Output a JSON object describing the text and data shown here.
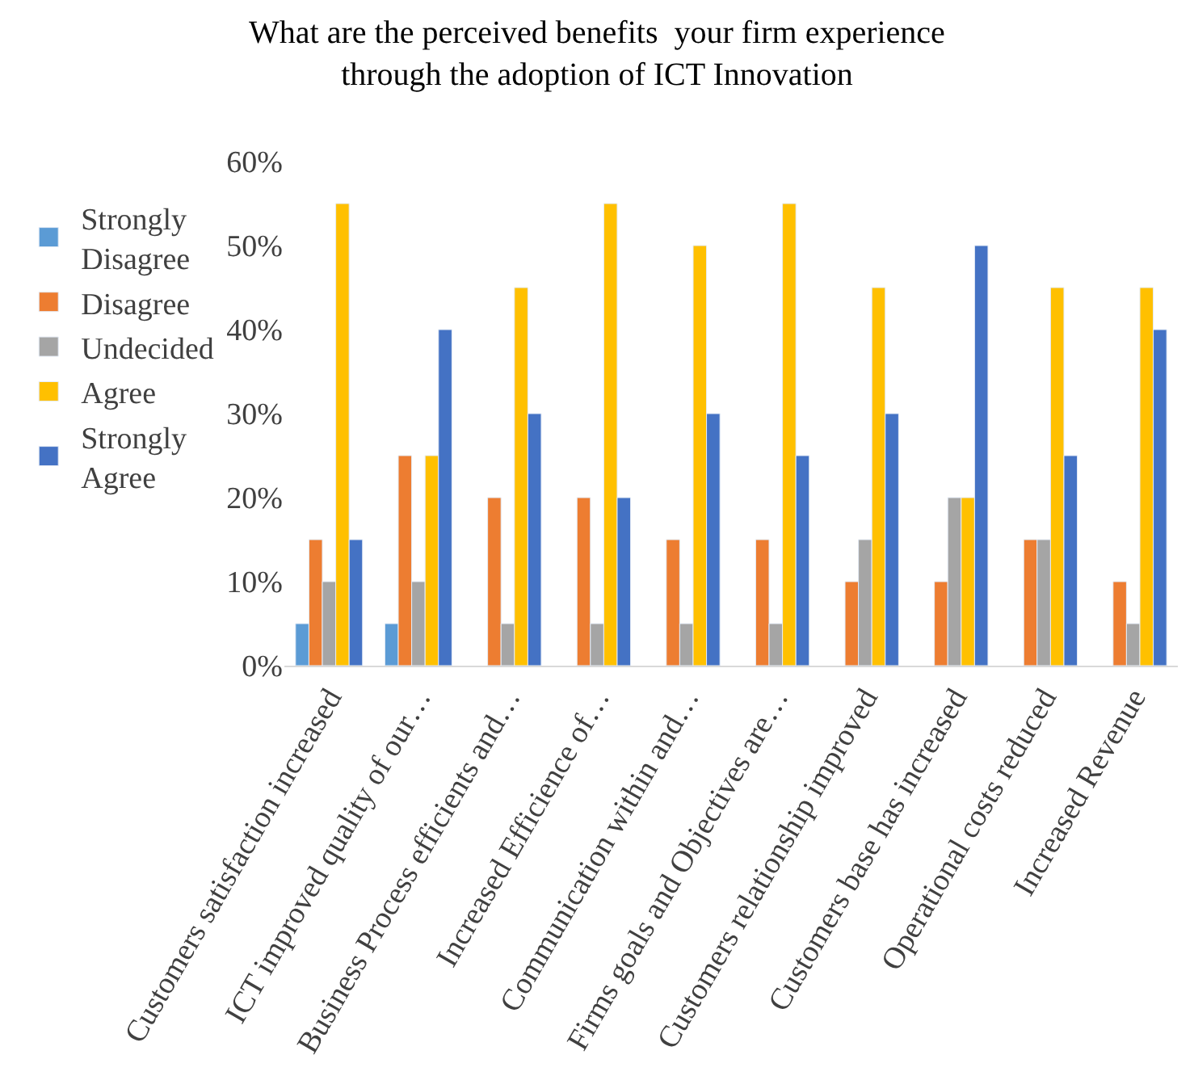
{
  "chart_data": {
    "type": "bar",
    "title": "What are the perceived benefits  your firm experience through the adoption of ICT Innovation",
    "categories": [
      "Customers satisfaction increased",
      "ICT improved quality of our…",
      "Business Process efficients and…",
      "Increased Efficience of…",
      "Communication within and…",
      "Firms goals and Objectives are…",
      "Customers relationship improved",
      "Customers base has increased",
      "Operational costs reduced",
      "Increased Revenue"
    ],
    "series": [
      {
        "name": "Strongly Disagree",
        "color": "#5b9bd5",
        "values": [
          5,
          5,
          null,
          null,
          null,
          null,
          null,
          null,
          null,
          null
        ]
      },
      {
        "name": "Disagree",
        "color": "#ed7d31",
        "values": [
          15,
          25,
          20,
          20,
          15,
          15,
          10,
          10,
          15,
          10
        ]
      },
      {
        "name": "Undecided",
        "color": "#a5a5a5",
        "values": [
          10,
          10,
          5,
          5,
          5,
          5,
          15,
          20,
          15,
          5
        ]
      },
      {
        "name": "Agree",
        "color": "#ffc000",
        "values": [
          55,
          25,
          45,
          55,
          50,
          55,
          45,
          20,
          45,
          45
        ]
      },
      {
        "name": "Strongly Agree",
        "color": "#4472c4",
        "values": [
          15,
          40,
          30,
          20,
          30,
          25,
          30,
          50,
          25,
          40
        ]
      }
    ],
    "ylim": [
      0,
      60
    ],
    "yticks": [
      {
        "value": 0,
        "label": "0%"
      },
      {
        "value": 10,
        "label": "10%"
      },
      {
        "value": 20,
        "label": "20%"
      },
      {
        "value": 30,
        "label": "30%"
      },
      {
        "value": 40,
        "label": "40%"
      },
      {
        "value": 50,
        "label": "50%"
      },
      {
        "value": 60,
        "label": "60%"
      }
    ],
    "grid": false,
    "legend": "left"
  }
}
